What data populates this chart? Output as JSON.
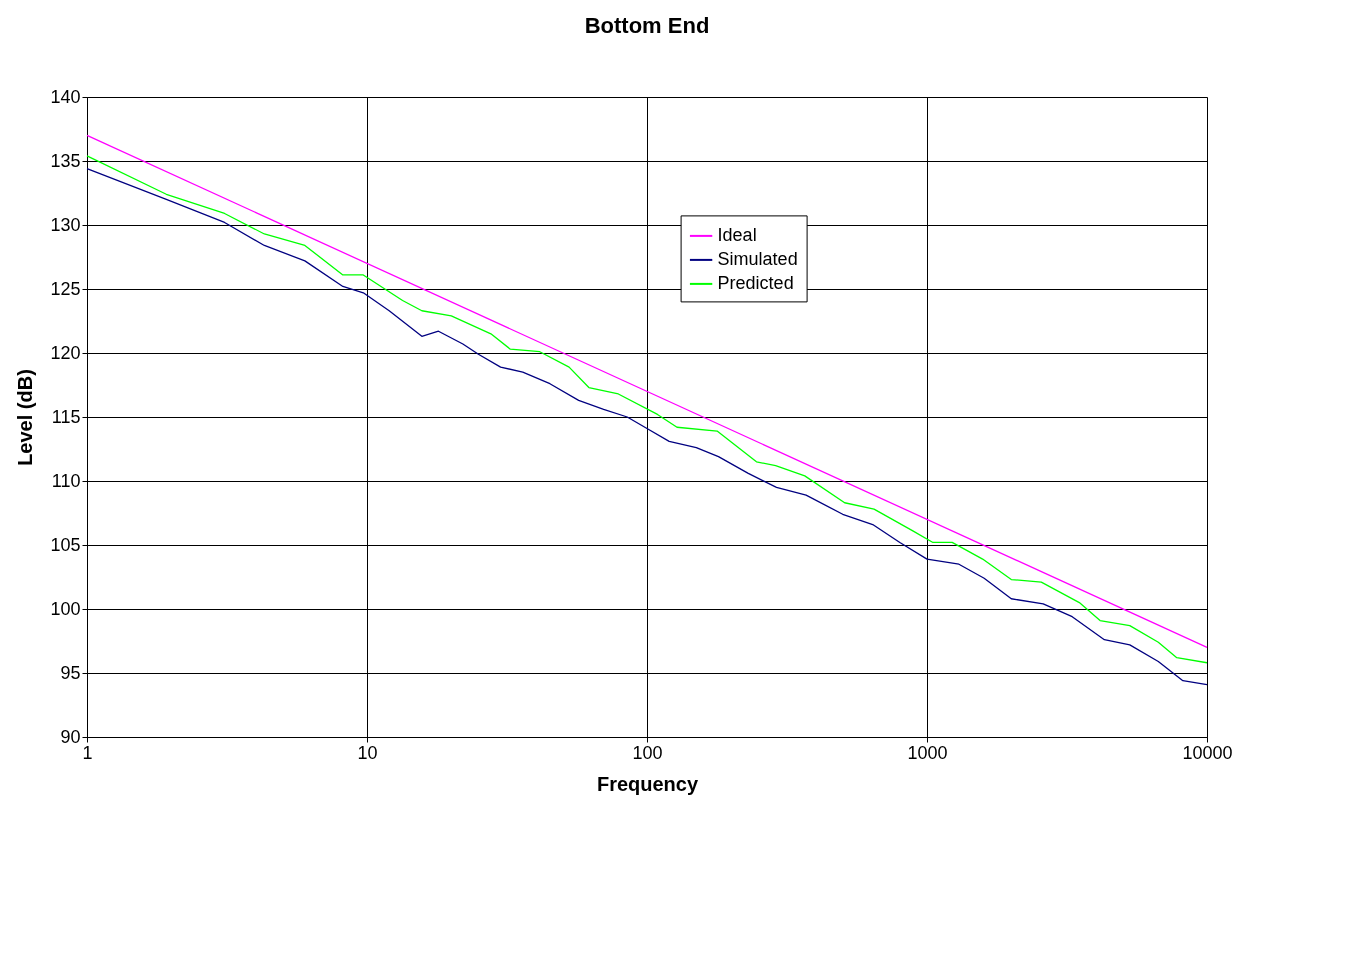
{
  "chart_data": {
    "type": "line",
    "title": "Bottom End",
    "xlabel": "Frequency",
    "ylabel": "Level (dB)",
    "log": "x",
    "grid": true,
    "legend": "top",
    "marker": "none",
    "line_style": "solid",
    "xlim": [
      1,
      10000
    ],
    "xticks": [
      1,
      10,
      100,
      1000,
      10000
    ],
    "ylim": [
      90,
      140
    ],
    "yticks": [
      90,
      95,
      100,
      105,
      110,
      115,
      120,
      125,
      130,
      135,
      140
    ],
    "series": [
      {
        "name": "Ideal",
        "color": "#ff00ff",
        "x": [
          1,
          10000
        ],
        "values": [
          137,
          97
        ]
      },
      {
        "name": "Simulated",
        "color": "#000080",
        "x": [
          1,
          1.92,
          3.1,
          4.3,
          6.0,
          8.2,
          9.7,
          12,
          15.7,
          18,
          22,
          25,
          30,
          36,
          45,
          57,
          70,
          85,
          100,
          120,
          150,
          180,
          230,
          290,
          370,
          500,
          640,
          800,
          1000,
          1300,
          1600,
          2000,
          2600,
          3300,
          4300,
          5300,
          6700,
          8200,
          10000
        ],
        "values": [
          134.4,
          132,
          130.2,
          128.4,
          127.2,
          125.2,
          124.7,
          123.3,
          121.3,
          121.7,
          120.7,
          119.9,
          118.9,
          118.5,
          117.6,
          116.3,
          115.6,
          115.0,
          114.1,
          113.1,
          112.6,
          111.9,
          110.6,
          109.5,
          108.9,
          107.4,
          106.6,
          105.2,
          103.9,
          103.5,
          102.4,
          100.8,
          100.4,
          99.4,
          97.6,
          97.2,
          95.9,
          94.4,
          94.1
        ]
      },
      {
        "name": "Predicted",
        "color": "#00ff00",
        "x": [
          1,
          1.92,
          3.1,
          4.3,
          6.0,
          8.2,
          9.7,
          13.4,
          15.7,
          20,
          27.7,
          32.5,
          41.4,
          52.7,
          62,
          79,
          109,
          128,
          178,
          246,
          288,
          366,
          508,
          647,
          890,
          1050,
          1230,
          1580,
          2000,
          2560,
          3500,
          4150,
          5300,
          6700,
          7800,
          10000
        ],
        "values": [
          135.4,
          132.4,
          130.9,
          129.3,
          128.4,
          126.1,
          126.1,
          124.1,
          123.3,
          122.9,
          121.5,
          120.3,
          120.1,
          118.9,
          117.3,
          116.8,
          115.2,
          114.2,
          113.9,
          111.5,
          111.2,
          110.4,
          108.3,
          107.8,
          106.1,
          105.2,
          105.2,
          103.9,
          102.3,
          102.1,
          100.5,
          99.1,
          98.7,
          97.4,
          96.2,
          95.8
        ]
      }
    ]
  }
}
